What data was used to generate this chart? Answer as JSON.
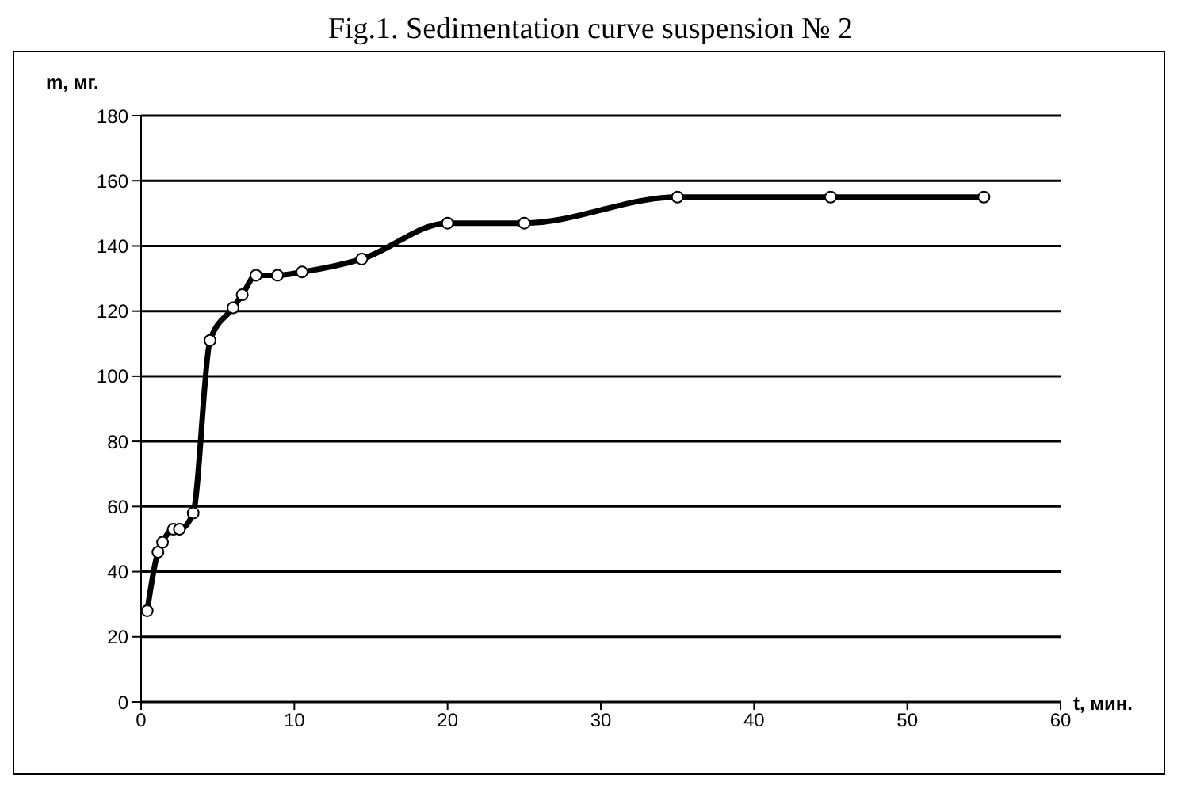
{
  "chart_data": {
    "type": "line",
    "title": "Fig.1. Sedimentation curve suspension № 2",
    "xlabel": "t, мин.",
    "ylabel": "m, мг.",
    "series": [
      {
        "color": "#000000",
        "x": [
          0.4,
          1.1,
          1.4,
          2.1,
          2.5,
          3.4,
          4.5,
          6.0,
          6.6,
          7.5,
          8.9,
          10.5,
          14.4,
          20,
          25,
          35,
          45,
          55
        ],
        "values": [
          28,
          46,
          49,
          53,
          53,
          58,
          111,
          121,
          125,
          131,
          131,
          132,
          136,
          147,
          147,
          155,
          155,
          155
        ]
      }
    ],
    "xlim": [
      0,
      60
    ],
    "xticks": [
      0,
      10,
      20,
      30,
      40,
      50,
      60
    ],
    "ylim": [
      0,
      180
    ],
    "yticks": [
      0,
      20,
      40,
      60,
      80,
      100,
      120,
      140,
      160,
      180
    ],
    "grid": "y",
    "marker": "circle",
    "line_style": "solid"
  }
}
